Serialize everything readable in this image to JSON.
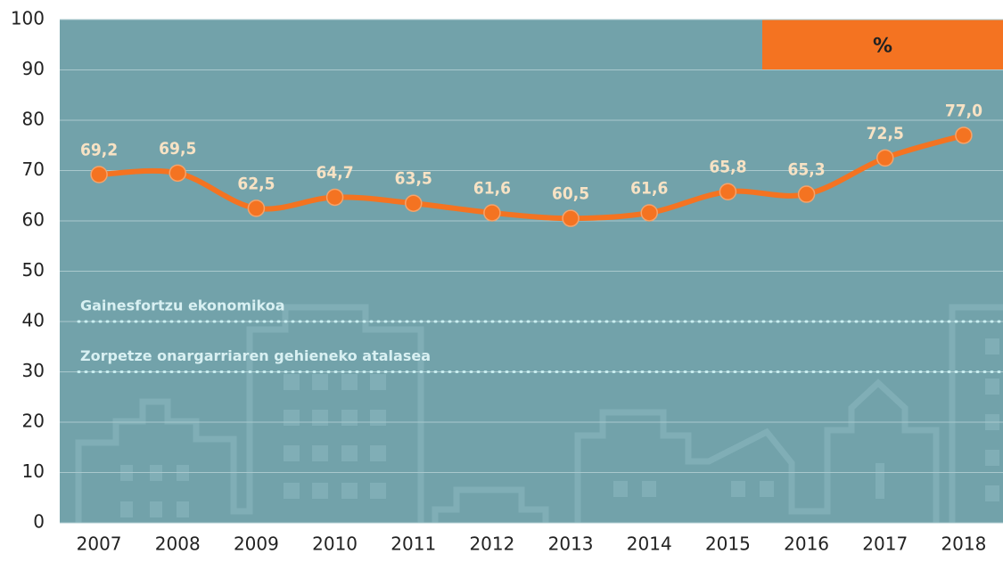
{
  "chart_data": {
    "type": "line",
    "unit_label": "%",
    "categories": [
      "2007",
      "2008",
      "2009",
      "2010",
      "2011",
      "2012",
      "2013",
      "2014",
      "2015",
      "2016",
      "2017",
      "2018"
    ],
    "series": [
      {
        "name": "%",
        "color": "#f47321",
        "values": [
          69.2,
          69.5,
          62.5,
          64.7,
          63.5,
          61.6,
          60.5,
          61.6,
          65.8,
          65.3,
          72.5,
          77.0
        ],
        "value_labels": [
          "69,2",
          "69,5",
          "62,5",
          "64,7",
          "63,5",
          "61,6",
          "60,5",
          "61,6",
          "65,8",
          "65,3",
          "72,5",
          "77,0"
        ]
      }
    ],
    "reference_lines": [
      {
        "value": 40,
        "label": "Gainesfortzu ekonomikoa"
      },
      {
        "value": 30,
        "label": "Zorpetze onargarriaren gehieneko atalasea"
      }
    ],
    "ylim": [
      0,
      100
    ],
    "yticks": [
      0,
      10,
      20,
      30,
      40,
      50,
      60,
      70,
      80,
      90,
      100
    ],
    "grid": true,
    "plot_color": "#72a2aa",
    "unit_box_color": "#f47321"
  }
}
